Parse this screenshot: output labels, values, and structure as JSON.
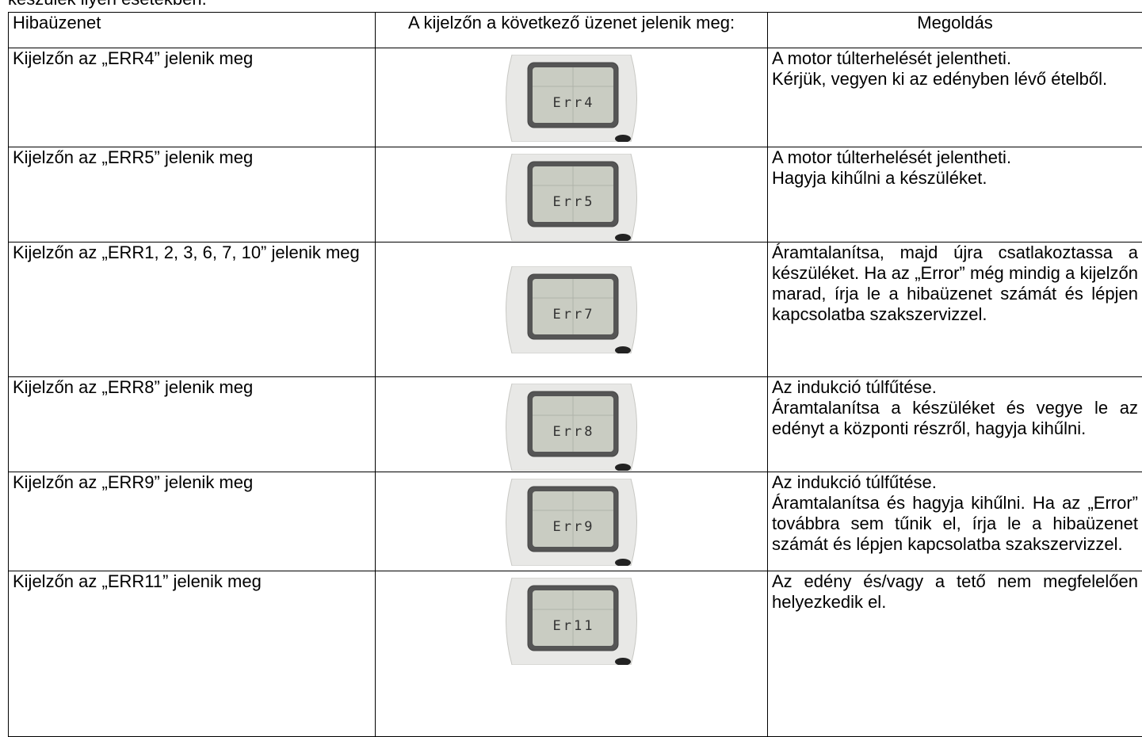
{
  "intro": "készülék ilyen esetekben.",
  "table": {
    "header": [
      "Hibaüzenet",
      "A kijelzőn a következő üzenet jelenik meg:",
      "Megoldás"
    ],
    "rows": [
      {
        "message": "Kijelzőn az „ERR4” jelenik meg",
        "display": "Err4",
        "solution": [
          "A motor túlterhelését jelentheti.",
          "Kérjük, vegyen ki az edényben lévő ételből."
        ]
      },
      {
        "message": "Kijelzőn az „ERR5” jelenik meg",
        "display": "Err5",
        "solution": [
          "A motor túlterhelését jelentheti.",
          "Hagyja kihűlni a készüléket."
        ]
      },
      {
        "message": "Kijelzőn az „ERR1, 2, 3, 6, 7, 10” jelenik meg",
        "display": "Err7",
        "solution": [
          "Áramtalanítsa, majd újra csatlakoztassa a készüléket. Ha az „Error” még mindig a kijelzőn marad, írja le a hibaüzenet számát és lépjen kapcsolatba szakszervizzel."
        ]
      },
      {
        "message": "Kijelzőn az „ERR8” jelenik meg",
        "display": "Err8",
        "solution": [
          "Az indukció túlfűtése.",
          "Áramtalanítsa a készüléket és vegye le az edényt a központi részről, hagyja kihűlni."
        ]
      },
      {
        "message": "Kijelzőn az „ERR9” jelenik meg",
        "display": "Err9",
        "solution": [
          "Az indukció túlfűtése.",
          "Áramtalanítsa és hagyja kihűlni. Ha az „Error” továbbra sem tűnik el, írja le a hibaüzenet számát és lépjen kapcsolatba szakszervizzel."
        ]
      },
      {
        "message": "Kijelzőn az „ERR11” jelenik meg",
        "display": "Er11",
        "solution": [
          "Az edény és/vagy a tető nem megfelelően helyezkedik el."
        ]
      }
    ]
  }
}
